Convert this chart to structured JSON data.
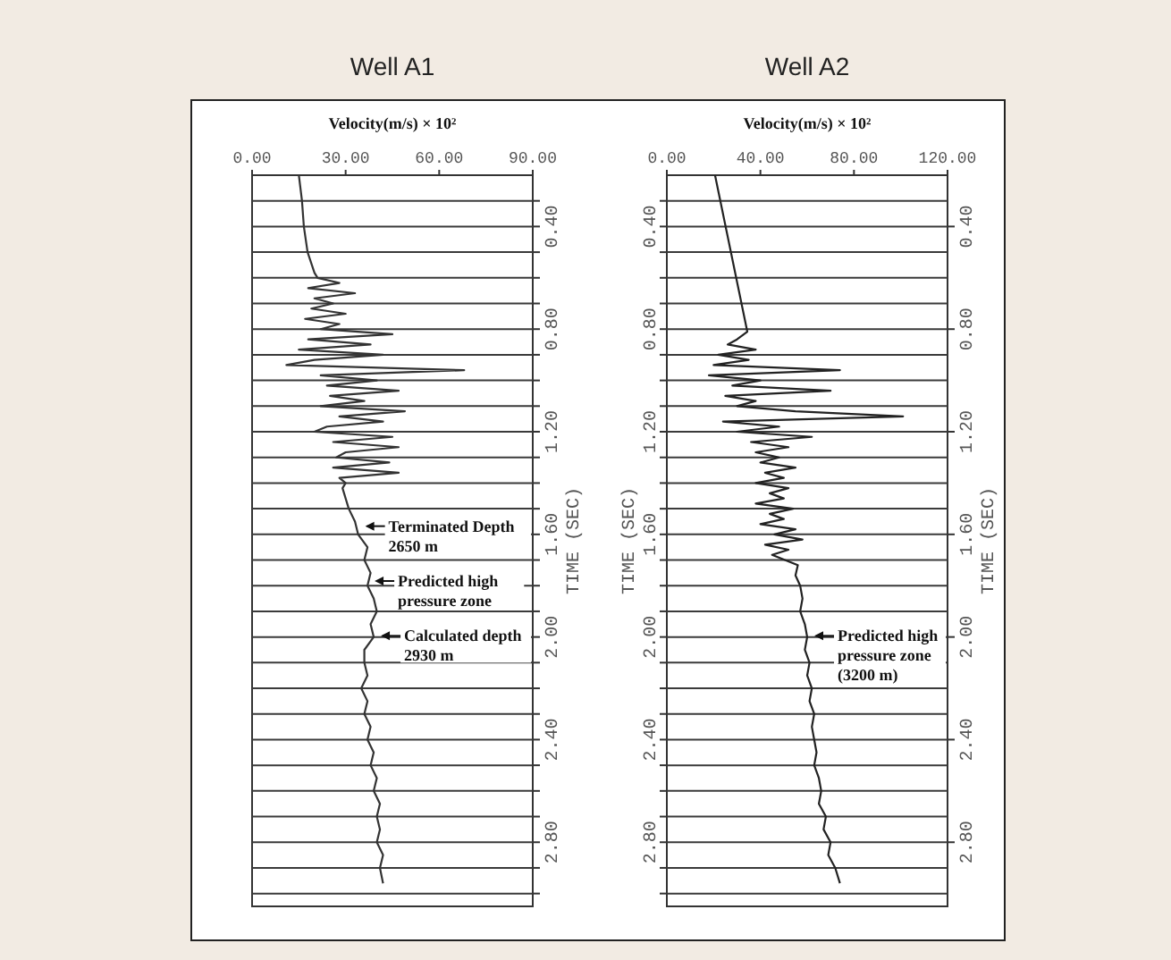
{
  "chart_data": [
    {
      "type": "line",
      "title": "Well A1",
      "xlabel": "Velocity(m/s)  × 10²",
      "y2label": "TIME (SEC)",
      "xlim": [
        0,
        90
      ],
      "xticks": [
        {
          "value": 0,
          "label": "0.00"
        },
        {
          "value": 30,
          "label": "30.00"
        },
        {
          "value": 60,
          "label": "60.00"
        },
        {
          "value": 90,
          "label": "90.00"
        }
      ],
      "y2lim": [
        3.05,
        0.2
      ],
      "y2ticks": [
        {
          "value": 0.3,
          "label": null
        },
        {
          "value": 0.4,
          "label": "0.40"
        },
        {
          "value": 0.5,
          "label": null
        },
        {
          "value": 0.6,
          "label": null
        },
        {
          "value": 0.7,
          "label": null
        },
        {
          "value": 0.8,
          "label": "0.80"
        },
        {
          "value": 0.9,
          "label": null
        },
        {
          "value": 1.0,
          "label": null
        },
        {
          "value": 1.1,
          "label": null
        },
        {
          "value": 1.2,
          "label": "1.20"
        },
        {
          "value": 1.3,
          "label": null
        },
        {
          "value": 1.4,
          "label": null
        },
        {
          "value": 1.5,
          "label": null
        },
        {
          "value": 1.6,
          "label": "1.60"
        },
        {
          "value": 1.7,
          "label": null
        },
        {
          "value": 1.8,
          "label": null
        },
        {
          "value": 1.9,
          "label": null
        },
        {
          "value": 2.0,
          "label": "2.00"
        },
        {
          "value": 2.1,
          "label": null
        },
        {
          "value": 2.2,
          "label": null
        },
        {
          "value": 2.3,
          "label": null
        },
        {
          "value": 2.4,
          "label": "2.40"
        },
        {
          "value": 2.5,
          "label": null
        },
        {
          "value": 2.6,
          "label": null
        },
        {
          "value": 2.7,
          "label": null
        },
        {
          "value": 2.8,
          "label": "2.80"
        },
        {
          "value": 2.9,
          "label": null
        },
        {
          "value": 3.0,
          "label": null
        }
      ],
      "grid": "y",
      "line_style": "solid",
      "marker": "none",
      "series": [
        {
          "color": "#333333",
          "axis": "y2",
          "x": [
            15,
            16,
            16.6,
            17.8,
            20,
            21,
            28,
            18,
            33,
            20,
            26,
            19,
            30,
            17,
            28,
            22,
            45,
            18,
            38,
            15,
            42,
            20,
            11,
            68,
            22,
            40,
            24,
            47,
            25,
            36,
            22,
            49,
            28,
            42,
            24,
            20,
            45,
            26,
            47,
            30,
            27,
            44,
            26,
            47,
            28,
            30,
            29,
            30,
            31,
            33,
            34,
            37,
            36,
            38,
            37,
            39,
            40,
            38,
            39,
            36,
            36,
            37,
            35,
            37,
            36,
            38,
            37,
            39,
            38,
            40,
            39,
            41,
            40,
            41,
            40,
            42,
            41,
            42
          ],
          "values": [
            0.2,
            0.3,
            0.4,
            0.5,
            0.58,
            0.6,
            0.62,
            0.64,
            0.66,
            0.68,
            0.7,
            0.72,
            0.74,
            0.76,
            0.78,
            0.8,
            0.82,
            0.84,
            0.86,
            0.88,
            0.9,
            0.92,
            0.94,
            0.96,
            0.98,
            1.0,
            1.02,
            1.04,
            1.06,
            1.08,
            1.1,
            1.12,
            1.14,
            1.16,
            1.18,
            1.2,
            1.22,
            1.24,
            1.26,
            1.28,
            1.3,
            1.32,
            1.34,
            1.36,
            1.38,
            1.4,
            1.42,
            1.46,
            1.5,
            1.55,
            1.6,
            1.65,
            1.7,
            1.75,
            1.8,
            1.85,
            1.9,
            1.95,
            2.0,
            2.05,
            2.1,
            2.15,
            2.2,
            2.25,
            2.3,
            2.35,
            2.4,
            2.45,
            2.5,
            2.55,
            2.6,
            2.65,
            2.7,
            2.75,
            2.8,
            2.85,
            2.9,
            2.96
          ]
        }
      ],
      "annotations": [
        "Terminated Depth\n2650 m",
        "Predicted high\npressure zone",
        "Calculated depth\n2930 m"
      ]
    },
    {
      "type": "line",
      "title": "Well A2",
      "xlabel": "Velocity(m/s)  × 10²",
      "ylabel": "TIME (SEC)",
      "y2label": "TIME (SEC)",
      "xlim": [
        0,
        120
      ],
      "xticks": [
        {
          "value": 0,
          "label": "0.00"
        },
        {
          "value": 40,
          "label": "40.00"
        },
        {
          "value": 80,
          "label": "80.00"
        },
        {
          "value": 120,
          "label": "120.00"
        }
      ],
      "ylim": [
        3.05,
        0.2
      ],
      "yticks": [
        {
          "value": 0.3,
          "label": null
        },
        {
          "value": 0.4,
          "label": "0.40"
        },
        {
          "value": 0.5,
          "label": null
        },
        {
          "value": 0.6,
          "label": null
        },
        {
          "value": 0.7,
          "label": null
        },
        {
          "value": 0.8,
          "label": "0.80"
        },
        {
          "value": 0.9,
          "label": null
        },
        {
          "value": 1.0,
          "label": null
        },
        {
          "value": 1.1,
          "label": null
        },
        {
          "value": 1.2,
          "label": "1.20"
        },
        {
          "value": 1.3,
          "label": null
        },
        {
          "value": 1.4,
          "label": null
        },
        {
          "value": 1.5,
          "label": null
        },
        {
          "value": 1.6,
          "label": "1.60"
        },
        {
          "value": 1.7,
          "label": null
        },
        {
          "value": 1.8,
          "label": null
        },
        {
          "value": 1.9,
          "label": null
        },
        {
          "value": 2.0,
          "label": "2.00"
        },
        {
          "value": 2.1,
          "label": null
        },
        {
          "value": 2.2,
          "label": null
        },
        {
          "value": 2.3,
          "label": null
        },
        {
          "value": 2.4,
          "label": "2.40"
        },
        {
          "value": 2.5,
          "label": null
        },
        {
          "value": 2.6,
          "label": null
        },
        {
          "value": 2.7,
          "label": null
        },
        {
          "value": 2.8,
          "label": "2.80"
        },
        {
          "value": 2.9,
          "label": null
        },
        {
          "value": 3.0,
          "label": null
        }
      ],
      "y2lim": [
        3.05,
        0.2
      ],
      "y2ticks": [
        {
          "value": 0.4,
          "label": "0.40"
        },
        {
          "value": 0.8,
          "label": "0.80"
        },
        {
          "value": 1.2,
          "label": "1.20"
        },
        {
          "value": 1.6,
          "label": "1.60"
        },
        {
          "value": 2.0,
          "label": "2.00"
        },
        {
          "value": 2.4,
          "label": "2.40"
        },
        {
          "value": 2.8,
          "label": "2.80"
        }
      ],
      "grid": "y",
      "line_style": "solid",
      "marker": "none",
      "series": [
        {
          "color": "#222222",
          "x": [
            20.6,
            34.4,
            30,
            26,
            38,
            22,
            35,
            20,
            74,
            18,
            40,
            28,
            70,
            25,
            38,
            30,
            55,
            101,
            24,
            48,
            30,
            62,
            36,
            52,
            38,
            48,
            40,
            55,
            42,
            50,
            38,
            52,
            44,
            50,
            38,
            54,
            44,
            50,
            40,
            55,
            46,
            58,
            42,
            52,
            45,
            56,
            55,
            57,
            58,
            57,
            59,
            60,
            59,
            61,
            60,
            62,
            61,
            63,
            62,
            63,
            64,
            63,
            65,
            66,
            65,
            68,
            67,
            70,
            69,
            72,
            74
          ],
          "values": [
            0.2,
            0.81,
            0.84,
            0.86,
            0.88,
            0.9,
            0.92,
            0.94,
            0.96,
            0.98,
            1.0,
            1.02,
            1.04,
            1.06,
            1.08,
            1.1,
            1.12,
            1.14,
            1.16,
            1.18,
            1.2,
            1.22,
            1.24,
            1.26,
            1.28,
            1.3,
            1.32,
            1.34,
            1.36,
            1.38,
            1.4,
            1.42,
            1.44,
            1.46,
            1.48,
            1.5,
            1.52,
            1.54,
            1.56,
            1.58,
            1.6,
            1.62,
            1.64,
            1.66,
            1.68,
            1.72,
            1.76,
            1.8,
            1.85,
            1.9,
            1.95,
            2.0,
            2.05,
            2.1,
            2.15,
            2.2,
            2.25,
            2.3,
            2.35,
            2.4,
            2.45,
            2.5,
            2.55,
            2.6,
            2.65,
            2.7,
            2.75,
            2.8,
            2.85,
            2.9,
            2.96
          ]
        }
      ],
      "annotations": [
        "Predicted high\npressure zone\n(3200 m)"
      ]
    }
  ]
}
